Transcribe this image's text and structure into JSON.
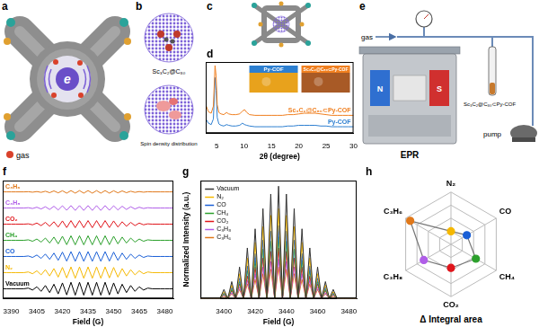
{
  "illustrations": {
    "a": {
      "panel": "a",
      "center_label": "e",
      "legend": "gas"
    },
    "b": {
      "panel": "b",
      "captions": [
        "Sc₃C₂@C₈₀",
        "Spin density distribution"
      ]
    },
    "c": {
      "panel": "c"
    },
    "e": {
      "panel": "e",
      "inlet": "gas",
      "magnet_poles": [
        "N",
        "S"
      ],
      "sample": "Sc₃C₂@C₈₀⊂Py-COF",
      "pump": "pump",
      "instrument": "EPR"
    }
  },
  "chart_data": [
    {
      "panel": "d",
      "type": "line",
      "xlabel": "2θ (degree)",
      "x": [
        3,
        3.5,
        4,
        4.4,
        4.7,
        4.9,
        5.1,
        5.4,
        5.8,
        6.3,
        6.8,
        7.2,
        7.8,
        8.5,
        9.2,
        9.7,
        10.1,
        10.5,
        11,
        12,
        13,
        14,
        15,
        16,
        17,
        18,
        19,
        20,
        21,
        22,
        23,
        24,
        25,
        26,
        27,
        28,
        29,
        30
      ],
      "xlim": [
        3,
        30
      ],
      "xticks": [
        5,
        10,
        15,
        20,
        25,
        30
      ],
      "ylim": [
        0,
        1
      ],
      "tick_labels": "x",
      "grid": false,
      "series": [
        {
          "name": "Sc₃C₂@C₈₀⊂Py-COF",
          "color": "#f07f1f",
          "values": [
            0.4,
            0.3,
            0.28,
            0.38,
            0.95,
            0.8,
            0.4,
            0.29,
            0.27,
            0.26,
            0.29,
            0.27,
            0.26,
            0.26,
            0.27,
            0.31,
            0.33,
            0.29,
            0.26,
            0.25,
            0.25,
            0.25,
            0.25,
            0.25,
            0.25,
            0.26,
            0.26,
            0.27,
            0.28,
            0.28,
            0.28,
            0.27,
            0.26,
            0.25,
            0.25,
            0.25,
            0.25,
            0.25
          ]
        },
        {
          "name": "Py-COF",
          "color": "#2d7fd0",
          "values": [
            0.2,
            0.14,
            0.12,
            0.2,
            0.78,
            0.6,
            0.22,
            0.13,
            0.11,
            0.1,
            0.12,
            0.11,
            0.1,
            0.1,
            0.11,
            0.14,
            0.12,
            0.11,
            0.1,
            0.09,
            0.09,
            0.09,
            0.09,
            0.09,
            0.09,
            0.1,
            0.1,
            0.11,
            0.11,
            0.11,
            0.11,
            0.1,
            0.1,
            0.09,
            0.09,
            0.09,
            0.09,
            0.09
          ]
        }
      ],
      "insets": [
        {
          "label": "Py-COF",
          "color": "#2d7fd0"
        },
        {
          "label": "Sc₃C₂@C₈₀⊂Py-COF",
          "color": "#f07f1f"
        }
      ]
    },
    {
      "panel": "f",
      "type": "line",
      "xlabel": "Field (G)",
      "x": [
        3385,
        3387.5,
        3390,
        3392.5,
        3395,
        3397.5,
        3400,
        3402.5,
        3405,
        3407.5,
        3410,
        3412.5,
        3415,
        3417.5,
        3420,
        3422.5,
        3425,
        3427.5,
        3430,
        3432.5,
        3435,
        3437.5,
        3440,
        3442.5,
        3445,
        3447.5,
        3450,
        3452.5,
        3455,
        3457.5,
        3460,
        3462.5,
        3465,
        3467.5,
        3470,
        3472.5,
        3475,
        3477.5,
        3480,
        3482.5,
        3485
      ],
      "xlim": [
        3385,
        3485
      ],
      "xticks": [
        3390,
        3405,
        3420,
        3435,
        3450,
        3465,
        3480
      ],
      "ylim": [
        -0.6,
        6.7
      ],
      "tick_labels": "x",
      "grid": false,
      "series": [
        {
          "name": "C₃H₆",
          "color": "#e0781a",
          "values": [
            6,
            6,
            6,
            6,
            6,
            6,
            6.01,
            5.98,
            6.02,
            5.97,
            6.04,
            5.95,
            6.06,
            5.94,
            6.07,
            5.92,
            6.08,
            5.92,
            6.08,
            5.92,
            6.08,
            5.92,
            6.08,
            5.92,
            6.08,
            5.92,
            6.07,
            5.94,
            6.06,
            5.95,
            6.04,
            5.97,
            6.02,
            5.98,
            6.01,
            6,
            6,
            6,
            6,
            6,
            6
          ]
        },
        {
          "name": "C₃H₈",
          "color": "#b05ee8",
          "values": [
            5,
            5,
            5,
            5,
            5,
            5,
            5.02,
            4.97,
            5.05,
            4.94,
            5.08,
            4.91,
            5.11,
            4.88,
            5.14,
            4.86,
            5.15,
            4.85,
            5.15,
            4.85,
            5.15,
            4.85,
            5.15,
            4.85,
            5.15,
            4.86,
            5.14,
            4.88,
            5.11,
            4.91,
            5.08,
            4.94,
            5.05,
            4.97,
            5.02,
            5,
            5,
            5,
            5,
            5,
            5
          ]
        },
        {
          "name": "CO₂",
          "color": "#e0151b",
          "values": [
            4,
            4,
            4,
            4,
            4,
            4,
            4.02,
            3.96,
            4.07,
            3.91,
            4.11,
            3.87,
            4.15,
            3.82,
            4.2,
            3.79,
            4.22,
            3.78,
            4.22,
            3.78,
            4.22,
            3.78,
            4.22,
            3.78,
            4.22,
            3.79,
            4.2,
            3.82,
            4.15,
            3.87,
            4.11,
            3.91,
            4.07,
            3.96,
            4.02,
            4,
            4,
            4,
            4,
            4,
            4
          ]
        },
        {
          "name": "CH₄",
          "color": "#2ca02c",
          "values": [
            3,
            3,
            3,
            3,
            3,
            3,
            3.03,
            2.94,
            3.08,
            2.89,
            3.14,
            2.83,
            3.2,
            2.78,
            3.25,
            2.73,
            3.28,
            2.72,
            3.28,
            2.72,
            3.28,
            2.72,
            3.28,
            2.72,
            3.28,
            2.73,
            3.25,
            2.78,
            3.2,
            2.83,
            3.14,
            2.89,
            3.08,
            2.94,
            3.03,
            3,
            3,
            3,
            3,
            3,
            3
          ]
        },
        {
          "name": "CO",
          "color": "#1a5fd6",
          "values": [
            2,
            2,
            2,
            2,
            2,
            2,
            2.03,
            1.94,
            2.09,
            1.88,
            2.15,
            1.82,
            2.21,
            1.76,
            2.27,
            1.71,
            2.3,
            1.7,
            2.3,
            1.7,
            2.3,
            1.7,
            2.3,
            1.7,
            2.3,
            1.71,
            2.27,
            1.76,
            2.21,
            1.82,
            2.15,
            1.88,
            2.09,
            1.94,
            2.03,
            2,
            2,
            2,
            2,
            2,
            2
          ]
        },
        {
          "name": "N₂",
          "color": "#f5b800",
          "values": [
            1,
            1,
            1,
            1,
            1,
            1,
            1.04,
            0.93,
            1.11,
            0.86,
            1.18,
            0.79,
            1.25,
            0.72,
            1.32,
            0.67,
            1.35,
            0.65,
            1.35,
            0.65,
            1.35,
            0.65,
            1.35,
            0.65,
            1.35,
            0.67,
            1.32,
            0.72,
            1.25,
            0.79,
            1.18,
            0.86,
            1.11,
            0.93,
            1.04,
            1,
            1,
            1,
            1,
            1,
            1
          ]
        },
        {
          "name": "Vacuum",
          "color": "#000000",
          "values": [
            0,
            0,
            0,
            0,
            0,
            0,
            0.04,
            -0.08,
            0.12,
            -0.16,
            0.2,
            -0.24,
            0.28,
            -0.32,
            0.36,
            -0.38,
            0.4,
            -0.4,
            0.4,
            -0.4,
            0.4,
            -0.4,
            0.4,
            -0.4,
            0.4,
            -0.38,
            0.36,
            -0.32,
            0.28,
            -0.24,
            0.2,
            -0.16,
            0.12,
            -0.08,
            0.04,
            0,
            0,
            0,
            0,
            0,
            0
          ]
        }
      ]
    },
    {
      "panel": "g",
      "type": "line",
      "xlabel": "Field (G)",
      "ylabel": "Normalized Intensity (a.u.)",
      "x": [
        3385,
        3387.5,
        3390,
        3392.5,
        3395,
        3397.5,
        3400,
        3402.5,
        3405,
        3407.5,
        3410,
        3412.5,
        3415,
        3417.5,
        3420,
        3422.5,
        3425,
        3427.5,
        3430,
        3432.5,
        3435,
        3437.5,
        3440,
        3442.5,
        3445,
        3447.5,
        3450,
        3452.5,
        3455,
        3457.5,
        3460,
        3462.5,
        3465,
        3467.5,
        3470,
        3472.5,
        3475,
        3477.5,
        3480,
        3482.5,
        3485
      ],
      "xlim": [
        3385,
        3485
      ],
      "xticks": [
        3400,
        3420,
        3440,
        3460,
        3480
      ],
      "ylim": [
        0,
        1.05
      ],
      "tick_labels": "x",
      "grid": false,
      "legend": "upper left",
      "series": [
        {
          "name": "Vacuum",
          "color": "#333333",
          "values": [
            0,
            0,
            0,
            0,
            0,
            0,
            0.08,
            0,
            0.15,
            0,
            0.28,
            0,
            0.45,
            0,
            0.62,
            0,
            0.8,
            0,
            0.93,
            0,
            1,
            0,
            0.93,
            0,
            0.8,
            0,
            0.62,
            0,
            0.45,
            0,
            0.28,
            0,
            0.15,
            0,
            0.08,
            0,
            0,
            0,
            0,
            0,
            0
          ]
        },
        {
          "name": "N₂",
          "color": "#f5b800",
          "values": [
            0,
            0,
            0,
            0,
            0,
            0,
            0.06,
            0,
            0.12,
            0,
            0.22,
            0,
            0.36,
            0,
            0.5,
            0,
            0.64,
            0,
            0.74,
            0,
            0.8,
            0,
            0.74,
            0,
            0.64,
            0,
            0.5,
            0,
            0.36,
            0,
            0.22,
            0,
            0.12,
            0,
            0.06,
            0,
            0,
            0,
            0,
            0,
            0
          ]
        },
        {
          "name": "CO",
          "color": "#1a5fd6",
          "values": [
            0,
            0,
            0,
            0,
            0,
            0,
            0.05,
            0,
            0.1,
            0,
            0.18,
            0,
            0.29,
            0,
            0.4,
            0,
            0.52,
            0,
            0.6,
            0,
            0.65,
            0,
            0.6,
            0,
            0.52,
            0,
            0.4,
            0,
            0.29,
            0,
            0.18,
            0,
            0.1,
            0,
            0.05,
            0,
            0,
            0,
            0,
            0,
            0
          ]
        },
        {
          "name": "CH₄",
          "color": "#2ca02c",
          "values": [
            0,
            0,
            0,
            0,
            0,
            0,
            0.04,
            0,
            0.08,
            0,
            0.15,
            0,
            0.25,
            0,
            0.34,
            0,
            0.44,
            0,
            0.51,
            0,
            0.55,
            0,
            0.51,
            0,
            0.44,
            0,
            0.34,
            0,
            0.25,
            0,
            0.15,
            0,
            0.08,
            0,
            0.04,
            0,
            0,
            0,
            0,
            0,
            0
          ]
        },
        {
          "name": "CO₂",
          "color": "#e0151b",
          "values": [
            0,
            0,
            0,
            0,
            0,
            0,
            0.04,
            0,
            0.07,
            0,
            0.13,
            0,
            0.2,
            0,
            0.28,
            0,
            0.36,
            0,
            0.42,
            0,
            0.45,
            0,
            0.42,
            0,
            0.36,
            0,
            0.28,
            0,
            0.2,
            0,
            0.13,
            0,
            0.07,
            0,
            0.04,
            0,
            0,
            0,
            0,
            0,
            0
          ]
        },
        {
          "name": "C₃H₈",
          "color": "#b05ee8",
          "values": [
            0,
            0,
            0,
            0,
            0,
            0,
            0.03,
            0,
            0.05,
            0,
            0.1,
            0,
            0.16,
            0,
            0.22,
            0,
            0.28,
            0,
            0.33,
            0,
            0.35,
            0,
            0.33,
            0,
            0.28,
            0,
            0.22,
            0,
            0.16,
            0,
            0.1,
            0,
            0.05,
            0,
            0.03,
            0,
            0,
            0,
            0,
            0,
            0
          ]
        },
        {
          "name": "C₃H₆",
          "color": "#e0781a",
          "values": [
            0,
            0,
            0,
            0,
            0,
            0,
            0.02,
            0,
            0.04,
            0,
            0.08,
            0,
            0.13,
            0,
            0.17,
            0,
            0.22,
            0,
            0.26,
            0,
            0.28,
            0,
            0.26,
            0,
            0.22,
            0,
            0.17,
            0,
            0.13,
            0,
            0.08,
            0,
            0.04,
            0,
            0.02,
            0,
            0,
            0,
            0,
            0,
            0
          ]
        }
      ]
    },
    {
      "panel": "h",
      "type": "radar",
      "xlabel": "Δ Integral area",
      "categories": [
        "N₂",
        "CO",
        "CH₄",
        "CO₂",
        "C₃H₈",
        "C₃H₆"
      ],
      "values": [
        0.25,
        0.35,
        0.55,
        0.45,
        0.6,
        0.9
      ],
      "colors": [
        "#f5b800",
        "#1a5fd6",
        "#2ca02c",
        "#e0151b",
        "#b05ee8",
        "#e0781a"
      ],
      "ylim": [
        0,
        1
      ],
      "yticks": [
        0,
        0.25,
        0.5,
        0.75,
        1
      ],
      "tick_labels": false,
      "grid": true
    }
  ]
}
